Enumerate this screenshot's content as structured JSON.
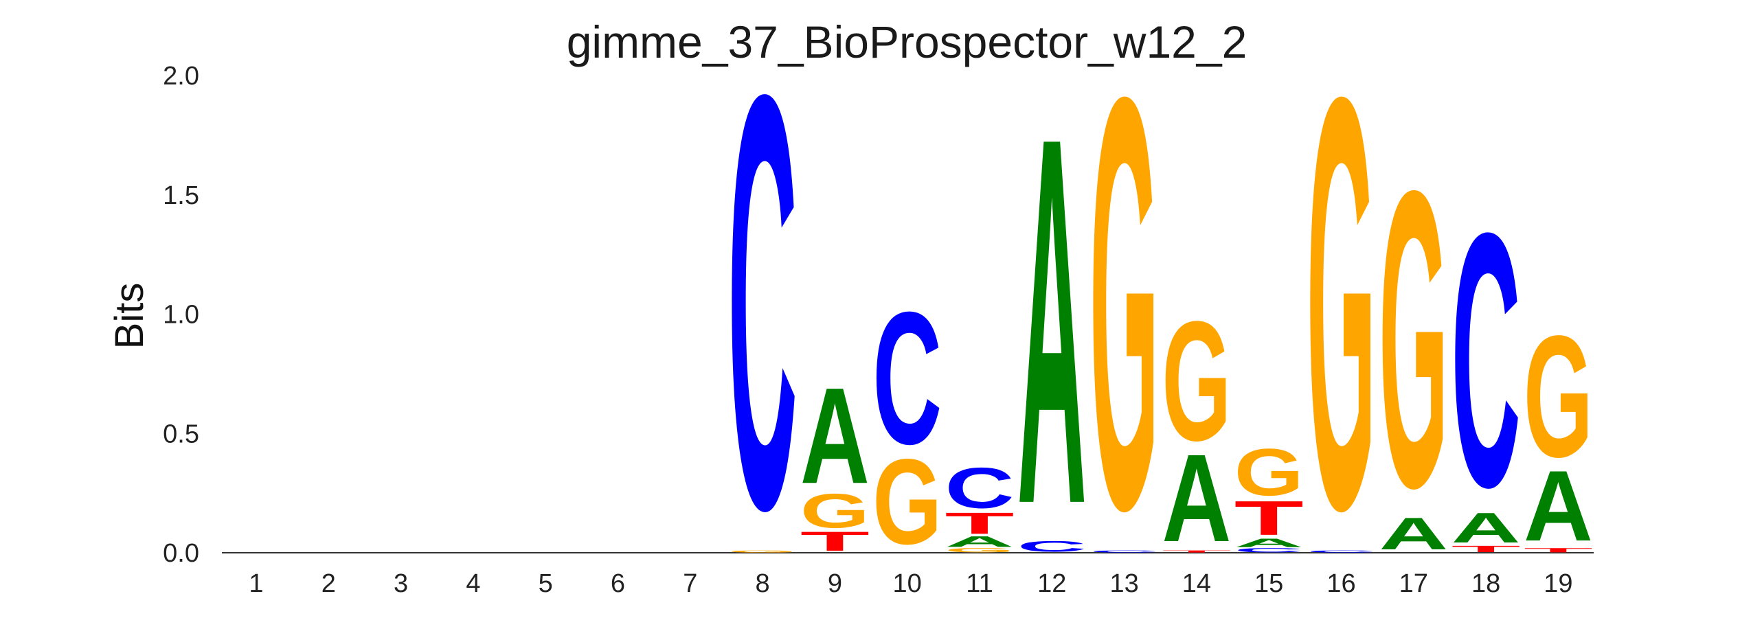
{
  "chart_data": {
    "type": "sequence-logo",
    "title": "gimme_37_BioProspector_w12_2",
    "ylabel": "Bits",
    "ylim": [
      0,
      2.0
    ],
    "yticks": [
      "0.0",
      "0.5",
      "1.0",
      "1.5",
      "2.0"
    ],
    "positions": [
      "1",
      "2",
      "3",
      "4",
      "5",
      "6",
      "7",
      "8",
      "9",
      "10",
      "11",
      "12",
      "13",
      "14",
      "15",
      "16",
      "17",
      "18",
      "19"
    ],
    "colors": {
      "A": "#008000",
      "C": "#0000ff",
      "G": "#ffa500",
      "T": "#ff0000"
    },
    "stacks": [
      [],
      [],
      [],
      [],
      [],
      [],
      [],
      [
        {
          "base": "G",
          "bits": 0.01
        },
        {
          "base": "C",
          "bits": 1.94
        }
      ],
      [
        {
          "base": "T",
          "bits": 0.09
        },
        {
          "base": "G",
          "bits": 0.16
        },
        {
          "base": "A",
          "bits": 0.45
        }
      ],
      [
        {
          "base": "G",
          "bits": 0.4
        },
        {
          "base": "C",
          "bits": 0.62
        }
      ],
      [
        {
          "base": "G",
          "bits": 0.02
        },
        {
          "base": "A",
          "bits": 0.05
        },
        {
          "base": "T",
          "bits": 0.1
        },
        {
          "base": "C",
          "bits": 0.19
        }
      ],
      [
        {
          "base": "C",
          "bits": 0.05
        },
        {
          "base": "A",
          "bits": 1.72
        }
      ],
      [
        {
          "base": "C",
          "bits": 0.01
        },
        {
          "base": "G",
          "bits": 1.93
        }
      ],
      [
        {
          "base": "T",
          "bits": 0.01
        },
        {
          "base": "A",
          "bits": 0.41
        },
        {
          "base": "G",
          "bits": 0.56
        }
      ],
      [
        {
          "base": "C",
          "bits": 0.02
        },
        {
          "base": "A",
          "bits": 0.04
        },
        {
          "base": "T",
          "bits": 0.16
        },
        {
          "base": "G",
          "bits": 0.22
        }
      ],
      [
        {
          "base": "C",
          "bits": 0.01
        },
        {
          "base": "G",
          "bits": 1.93
        }
      ],
      [
        {
          "base": "A",
          "bits": 0.15
        },
        {
          "base": "G",
          "bits": 1.39
        }
      ],
      [
        {
          "base": "T",
          "bits": 0.03
        },
        {
          "base": "A",
          "bits": 0.14
        },
        {
          "base": "C",
          "bits": 1.19
        }
      ],
      [
        {
          "base": "T",
          "bits": 0.02
        },
        {
          "base": "A",
          "bits": 0.33
        },
        {
          "base": "G",
          "bits": 0.57
        }
      ]
    ]
  }
}
